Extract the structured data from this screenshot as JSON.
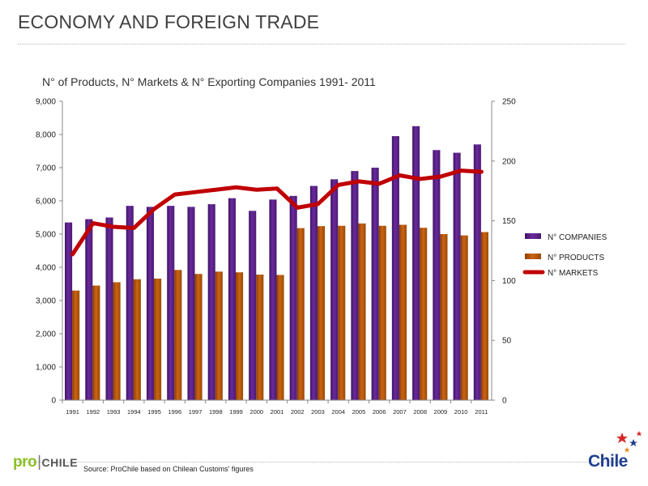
{
  "header": {
    "title": "ECONOMY AND FOREIGN TRADE"
  },
  "footer": {
    "source": "Source: ProChile based on Chilean Customs' figures",
    "logo_left_text": "pro",
    "logo_left_suffix": "CHILE",
    "logo_right_text": "Chile"
  },
  "colors": {
    "companies": "#6a2a9a",
    "products": "#cc6410",
    "markets": "#c00000"
  },
  "chart_data": {
    "type": "bar",
    "title": "N° of Products, N° Markets  & N° Exporting Companies 1991- 2011",
    "categories": [
      "1991",
      "1992",
      "1993",
      "1994",
      "1995",
      "1996",
      "1997",
      "1998",
      "1999",
      "2000",
      "2001",
      "2002",
      "2003",
      "2004",
      "2005",
      "2006",
      "2007",
      "2008",
      "2009",
      "2010",
      "2011"
    ],
    "y_left": {
      "range": [
        0,
        9000
      ],
      "ticks": [
        0,
        1000,
        2000,
        3000,
        4000,
        5000,
        6000,
        7000,
        8000,
        9000
      ],
      "tick_labels": [
        "0",
        "1,000",
        "2,000",
        "3,000",
        "4,000",
        "5,000",
        "6,000",
        "7,000",
        "8,000",
        "9,000"
      ]
    },
    "y_right": {
      "range": [
        0,
        250
      ],
      "ticks": [
        0,
        50,
        100,
        150,
        200,
        250
      ],
      "tick_labels": [
        "0",
        "50",
        "100",
        "150",
        "200",
        "250"
      ]
    },
    "series": [
      {
        "name": "N° COMPANIES",
        "type": "bar",
        "axis": "left",
        "values": [
          5350,
          5450,
          5500,
          5850,
          5820,
          5850,
          5820,
          5900,
          6080,
          5700,
          6040,
          6150,
          6450,
          6650,
          6900,
          7000,
          7950,
          8250,
          7530,
          7450,
          7700
        ]
      },
      {
        "name": "N° PRODUCTS",
        "type": "bar",
        "axis": "left",
        "values": [
          3300,
          3450,
          3550,
          3640,
          3660,
          3920,
          3800,
          3870,
          3850,
          3780,
          3770,
          5180,
          5240,
          5250,
          5320,
          5250,
          5280,
          5190,
          5000,
          4960,
          5060
        ]
      },
      {
        "name": "N° MARKETS",
        "type": "line",
        "axis": "right",
        "values": [
          122,
          148,
          145,
          144,
          160,
          172,
          174,
          176,
          178,
          176,
          177,
          161,
          164,
          180,
          183,
          181,
          188,
          185,
          187,
          192,
          191
        ]
      }
    ],
    "legend_position": "right",
    "grid": false
  }
}
